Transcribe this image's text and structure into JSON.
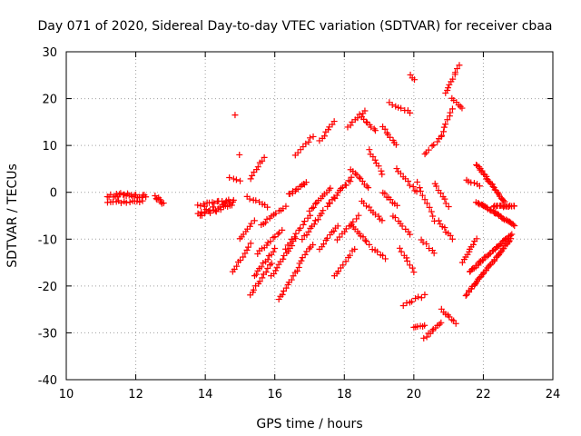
{
  "chart_data": {
    "type": "scatter",
    "title": "Day 071 of 2020, Sidereal Day-to-day VTEC variation (SDTVAR) for receiver cbaa",
    "xlabel": "GPS time / hours",
    "ylabel": "SDTVAR / TECUs",
    "xlim": [
      10,
      24
    ],
    "ylim": [
      -40,
      30
    ],
    "xticks": [
      10,
      12,
      14,
      16,
      18,
      20,
      22,
      24
    ],
    "yticks": [
      -40,
      -30,
      -20,
      -10,
      0,
      10,
      20,
      30
    ],
    "grid": true,
    "marker": "+",
    "color": "#ff0000",
    "series": [
      {
        "name": "SDTVAR",
        "segments": [
          {
            "x0": 11.2,
            "y0": -0.5,
            "x1": 12.3,
            "y1": -1.0,
            "n": 24,
            "jitter": 1.0
          },
          {
            "x0": 11.2,
            "y0": -2.2,
            "x1": 12.2,
            "y1": -1.8,
            "n": 14,
            "jitter": 0.6
          },
          {
            "x0": 12.55,
            "y0": -1.0,
            "x1": 12.8,
            "y1": -2.2,
            "n": 8,
            "jitter": 0.8
          },
          {
            "x0": 13.8,
            "y0": -5.0,
            "x1": 14.8,
            "y1": -2.0,
            "n": 26,
            "jitter": 1.4
          },
          {
            "x0": 13.8,
            "y0": -3.0,
            "x1": 14.8,
            "y1": -1.5,
            "n": 16,
            "jitter": 1.0
          },
          {
            "x0": 14.85,
            "y0": 16.5,
            "x1": 14.85,
            "y1": 16.5,
            "n": 1,
            "jitter": 0
          },
          {
            "x0": 14.7,
            "y0": 3.0,
            "x1": 15.0,
            "y1": 2.5,
            "n": 4,
            "jitter": 0.3
          },
          {
            "x0": 14.8,
            "y0": -17.0,
            "x1": 15.3,
            "y1": -11.0,
            "n": 10,
            "jitter": 0.4
          },
          {
            "x0": 15.0,
            "y0": -10.0,
            "x1": 15.4,
            "y1": -6.0,
            "n": 8,
            "jitter": 0.4
          },
          {
            "x0": 15.0,
            "y0": 8.0,
            "x1": 15.0,
            "y1": 8.0,
            "n": 1,
            "jitter": 0
          },
          {
            "x0": 15.3,
            "y0": 3.0,
            "x1": 15.7,
            "y1": 7.5,
            "n": 8,
            "jitter": 0.4
          },
          {
            "x0": 15.3,
            "y0": -22.0,
            "x1": 15.9,
            "y1": -15.0,
            "n": 12,
            "jitter": 0.4
          },
          {
            "x0": 15.4,
            "y0": -18.0,
            "x1": 16.0,
            "y1": -12.0,
            "n": 12,
            "jitter": 0.4
          },
          {
            "x0": 15.5,
            "y0": -13.0,
            "x1": 16.2,
            "y1": -8.0,
            "n": 12,
            "jitter": 0.4
          },
          {
            "x0": 15.6,
            "y0": -7.0,
            "x1": 16.3,
            "y1": -3.0,
            "n": 12,
            "jitter": 0.4
          },
          {
            "x0": 15.2,
            "y0": -1.0,
            "x1": 15.8,
            "y1": -3.0,
            "n": 8,
            "jitter": 0.4
          },
          {
            "x0": 15.9,
            "y0": -18.0,
            "x1": 16.6,
            "y1": -10.0,
            "n": 14,
            "jitter": 0.4
          },
          {
            "x0": 16.1,
            "y0": -23.0,
            "x1": 16.7,
            "y1": -16.0,
            "n": 12,
            "jitter": 0.4
          },
          {
            "x0": 16.3,
            "y0": -12.0,
            "x1": 17.0,
            "y1": -5.0,
            "n": 12,
            "jitter": 0.4
          },
          {
            "x0": 16.4,
            "y0": -0.5,
            "x1": 16.9,
            "y1": 2.0,
            "n": 12,
            "jitter": 0.5
          },
          {
            "x0": 16.6,
            "y0": 8.0,
            "x1": 17.1,
            "y1": 12.0,
            "n": 8,
            "jitter": 0.4
          },
          {
            "x0": 16.8,
            "y0": -10.0,
            "x1": 17.4,
            "y1": -4.0,
            "n": 12,
            "jitter": 0.4
          },
          {
            "x0": 16.7,
            "y0": -15.0,
            "x1": 17.1,
            "y1": -11.0,
            "n": 8,
            "jitter": 0.4
          },
          {
            "x0": 17.0,
            "y0": -4.0,
            "x1": 17.6,
            "y1": 1.0,
            "n": 12,
            "jitter": 0.4
          },
          {
            "x0": 17.3,
            "y0": 11.0,
            "x1": 17.7,
            "y1": 15.0,
            "n": 8,
            "jitter": 0.4
          },
          {
            "x0": 17.3,
            "y0": -12.0,
            "x1": 17.8,
            "y1": -7.0,
            "n": 10,
            "jitter": 0.4
          },
          {
            "x0": 17.5,
            "y0": -3.0,
            "x1": 18.2,
            "y1": 3.0,
            "n": 16,
            "jitter": 0.8
          },
          {
            "x0": 17.7,
            "y0": -18.0,
            "x1": 18.3,
            "y1": -12.0,
            "n": 10,
            "jitter": 0.4
          },
          {
            "x0": 17.8,
            "y0": -10.0,
            "x1": 18.4,
            "y1": -5.0,
            "n": 10,
            "jitter": 0.4
          },
          {
            "x0": 18.1,
            "y0": 14.0,
            "x1": 18.6,
            "y1": 17.5,
            "n": 8,
            "jitter": 0.4
          },
          {
            "x0": 18.2,
            "y0": 5.0,
            "x1": 18.7,
            "y1": 1.0,
            "n": 10,
            "jitter": 0.4
          },
          {
            "x0": 18.2,
            "y0": -7.0,
            "x1": 18.7,
            "y1": -11.0,
            "n": 10,
            "jitter": 0.4
          },
          {
            "x0": 18.5,
            "y0": 16.0,
            "x1": 18.9,
            "y1": 13.0,
            "n": 8,
            "jitter": 0.4
          },
          {
            "x0": 18.5,
            "y0": -2.0,
            "x1": 19.1,
            "y1": -6.0,
            "n": 10,
            "jitter": 0.4
          },
          {
            "x0": 18.7,
            "y0": 9.0,
            "x1": 19.1,
            "y1": 4.0,
            "n": 8,
            "jitter": 0.4
          },
          {
            "x0": 18.8,
            "y0": -12.0,
            "x1": 19.2,
            "y1": -14.0,
            "n": 6,
            "jitter": 0.4
          },
          {
            "x0": 19.1,
            "y0": 14.0,
            "x1": 19.5,
            "y1": 10.0,
            "n": 8,
            "jitter": 0.4
          },
          {
            "x0": 19.1,
            "y0": 0.0,
            "x1": 19.5,
            "y1": -3.0,
            "n": 8,
            "jitter": 0.4
          },
          {
            "x0": 19.3,
            "y0": 19.0,
            "x1": 19.9,
            "y1": 17.0,
            "n": 8,
            "jitter": 0.4
          },
          {
            "x0": 19.4,
            "y0": -5.0,
            "x1": 19.9,
            "y1": -9.0,
            "n": 8,
            "jitter": 0.4
          },
          {
            "x0": 19.5,
            "y0": 5.0,
            "x1": 20.1,
            "y1": 0.0,
            "n": 10,
            "jitter": 0.4
          },
          {
            "x0": 19.6,
            "y0": -12.0,
            "x1": 20.0,
            "y1": -17.0,
            "n": 8,
            "jitter": 0.4
          },
          {
            "x0": 19.7,
            "y0": -24.0,
            "x1": 20.3,
            "y1": -22.0,
            "n": 8,
            "jitter": 0.5
          },
          {
            "x0": 19.9,
            "y0": 25.0,
            "x1": 20.0,
            "y1": 24.0,
            "n": 3,
            "jitter": 0.3
          },
          {
            "x0": 20.0,
            "y0": -29.0,
            "x1": 20.3,
            "y1": -28.5,
            "n": 6,
            "jitter": 0.4
          },
          {
            "x0": 20.1,
            "y0": 2.0,
            "x1": 20.6,
            "y1": -6.0,
            "n": 10,
            "jitter": 0.4
          },
          {
            "x0": 20.2,
            "y0": -10.0,
            "x1": 20.6,
            "y1": -13.0,
            "n": 6,
            "jitter": 0.4
          },
          {
            "x0": 20.3,
            "y0": 8.0,
            "x1": 20.8,
            "y1": 12.0,
            "n": 8,
            "jitter": 0.4
          },
          {
            "x0": 20.3,
            "y0": -31.0,
            "x1": 20.8,
            "y1": -28.0,
            "n": 10,
            "jitter": 0.5
          },
          {
            "x0": 20.6,
            "y0": 2.0,
            "x1": 21.0,
            "y1": -3.0,
            "n": 8,
            "jitter": 0.4
          },
          {
            "x0": 20.7,
            "y0": -6.0,
            "x1": 21.1,
            "y1": -10.0,
            "n": 8,
            "jitter": 0.4
          },
          {
            "x0": 20.8,
            "y0": 12.0,
            "x1": 21.1,
            "y1": 18.0,
            "n": 8,
            "jitter": 0.4
          },
          {
            "x0": 20.8,
            "y0": -25.0,
            "x1": 21.2,
            "y1": -28.0,
            "n": 8,
            "jitter": 0.4
          },
          {
            "x0": 20.9,
            "y0": 21.0,
            "x1": 21.3,
            "y1": 27.0,
            "n": 10,
            "jitter": 0.4
          },
          {
            "x0": 21.1,
            "y0": 20.0,
            "x1": 21.4,
            "y1": 18.0,
            "n": 6,
            "jitter": 0.3
          },
          {
            "x0": 21.4,
            "y0": -15.0,
            "x1": 21.8,
            "y1": -10.0,
            "n": 10,
            "jitter": 0.4
          },
          {
            "x0": 21.5,
            "y0": 2.5,
            "x1": 21.9,
            "y1": 1.5,
            "n": 6,
            "jitter": 0.3
          },
          {
            "x0": 21.5,
            "y0": -22.0,
            "x1": 22.8,
            "y1": -10.0,
            "n": 40,
            "jitter": 0.3
          },
          {
            "x0": 21.6,
            "y0": -17.0,
            "x1": 22.8,
            "y1": -9.0,
            "n": 36,
            "jitter": 0.3
          },
          {
            "x0": 21.8,
            "y0": -2.0,
            "x1": 22.9,
            "y1": -7.0,
            "n": 36,
            "jitter": 0.3
          },
          {
            "x0": 21.8,
            "y0": 6.0,
            "x1": 22.6,
            "y1": -2.0,
            "n": 28,
            "jitter": 0.3
          },
          {
            "x0": 22.3,
            "y0": -3.0,
            "x1": 22.9,
            "y1": -3.0,
            "n": 16,
            "jitter": 0.3
          }
        ]
      }
    ]
  }
}
